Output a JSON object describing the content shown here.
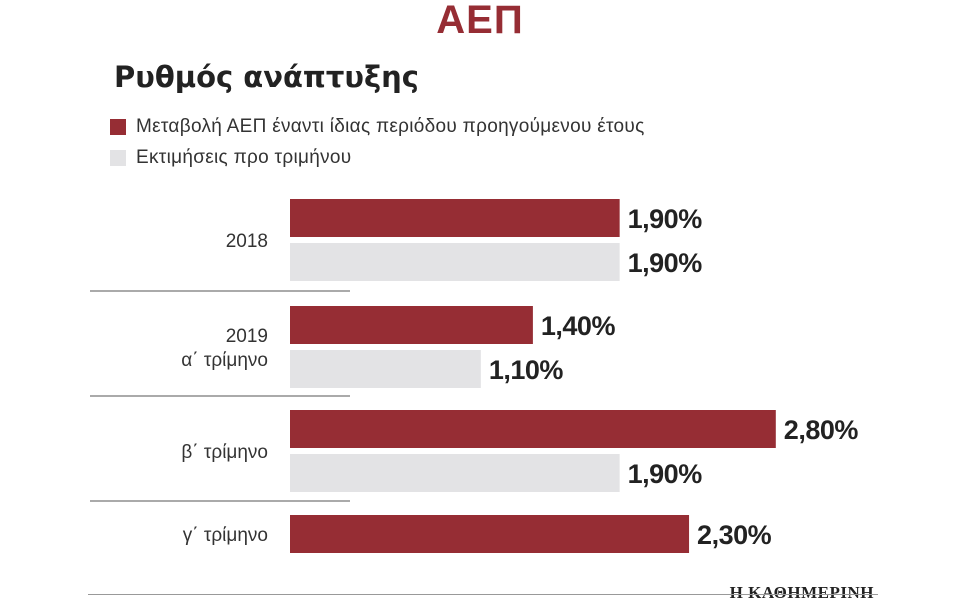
{
  "header": {
    "title": "ΑΕΠ",
    "subtitle": "Ρυθμός ανάπτυξης",
    "brand": "Η ΚΑΘΗΜΕΡΙΝΗ"
  },
  "legend": [
    {
      "label": "Μεταβολή ΑΕΠ έναντι ίδιας περιόδου προηγούμενου έτους",
      "color": "#962d34"
    },
    {
      "label": "Εκτιμήσεις προ τριμήνου",
      "color": "#e3e3e5"
    }
  ],
  "chart_data": {
    "type": "bar",
    "orientation": "horizontal",
    "title": "ΑΕΠ",
    "subtitle": "Ρυθμός ανάπτυξης",
    "unit": "%",
    "categories": [
      [
        "2018"
      ],
      [
        "2019",
        "α΄ τρίμηνο"
      ],
      [
        "β΄ τρίμηνο"
      ],
      [
        "γ΄ τρίμηνο"
      ]
    ],
    "series": [
      {
        "name": "Μεταβολή ΑΕΠ έναντι ίδιας περιόδου προηγούμενου έτους",
        "color": "#962d34",
        "values": [
          1.9,
          1.4,
          2.8,
          2.3
        ],
        "labels": [
          "1,90%",
          "1,40%",
          "2,80%",
          "2,30%"
        ]
      },
      {
        "name": "Εκτιμήσεις προ τριμήνου",
        "color": "#e3e3e5",
        "values": [
          1.9,
          1.1,
          1.9,
          null
        ],
        "labels": [
          "1,90%",
          "1,10%",
          "1,90%",
          null
        ]
      }
    ],
    "xlim": [
      0,
      2.8
    ],
    "grid": false,
    "legend_position": "top-left"
  }
}
